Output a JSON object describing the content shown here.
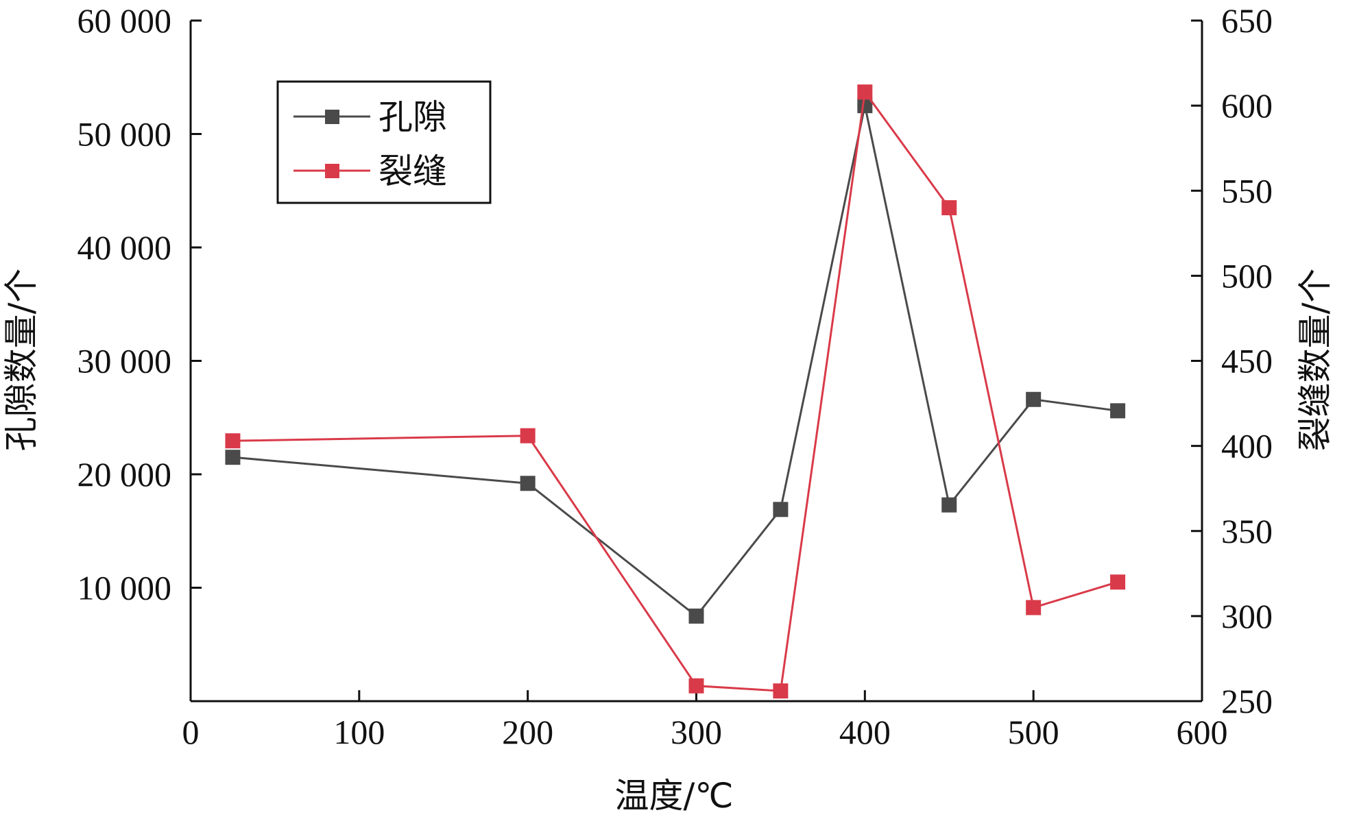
{
  "chart_data": {
    "type": "line",
    "xlabel": "温度/℃",
    "ylabel": "孔隙数量/个",
    "y2label": "裂缝数量/个",
    "x_ticks": [
      "0",
      "100",
      "200",
      "300",
      "400",
      "500",
      "600"
    ],
    "y_ticks": [
      "10 000",
      "20 000",
      "30 000",
      "40 000",
      "50 000",
      "60 000"
    ],
    "y2_ticks": [
      "250",
      "300",
      "350",
      "400",
      "450",
      "500",
      "550",
      "600",
      "650"
    ],
    "xlim": [
      0,
      600
    ],
    "ylim": [
      0,
      60000
    ],
    "y2lim": [
      250,
      650
    ],
    "grid": false,
    "legend_position": "top-left",
    "series": [
      {
        "name": "孔隙",
        "axis": "left",
        "color": "#4a4a4a",
        "marker": "square",
        "x": [
          25,
          200,
          300,
          350,
          400,
          450,
          500,
          550
        ],
        "y": [
          21500,
          19200,
          7500,
          16900,
          52500,
          17300,
          26600,
          25600
        ]
      },
      {
        "name": "裂缝",
        "axis": "right",
        "color": "#d93a49",
        "marker": "square",
        "x": [
          25,
          200,
          300,
          350,
          400,
          450,
          500,
          550
        ],
        "y": [
          403,
          406,
          259,
          256,
          608,
          540,
          305,
          320
        ]
      }
    ]
  }
}
